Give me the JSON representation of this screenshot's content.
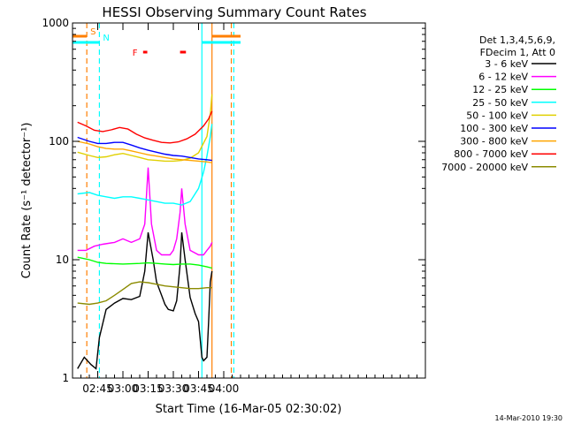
{
  "chart_data": {
    "type": "line",
    "title": "HESSI Observing Summary Count Rates",
    "xlabel": "Start Time (16-Mar-05 02:30:02)",
    "ylabel": "Count Rate (s⁻¹ detector⁻¹)",
    "yscale": "log",
    "ylim": [
      1,
      1000
    ],
    "xlim_minutes": [
      30,
      240
    ],
    "x_ticks": [
      {
        "minute": 45,
        "label": "02:45"
      },
      {
        "minute": 60,
        "label": "03:00"
      },
      {
        "minute": 75,
        "label": "03:15"
      },
      {
        "minute": 90,
        "label": "03:30"
      },
      {
        "minute": 105,
        "label": "03:45"
      },
      {
        "minute": 120,
        "label": "04:00"
      }
    ],
    "y_ticks": [
      {
        "value": 1,
        "label": "1"
      },
      {
        "value": 10,
        "label": "10"
      },
      {
        "value": 100,
        "label": "100"
      },
      {
        "value": 1000,
        "label": "1000"
      }
    ],
    "legend_header": [
      "Det 1,3,4,5,6,9,",
      "FDecim 1, Att 0"
    ],
    "legend_position": "right",
    "series": [
      {
        "name": "3 - 6 keV",
        "color": "#000000",
        "x": [
          33,
          37,
          41,
          44,
          46,
          50,
          55,
          60,
          65,
          70,
          73,
          75,
          78,
          80,
          83,
          85,
          87,
          90,
          92,
          94,
          95,
          97,
          100,
          103,
          105,
          107,
          108,
          110,
          111,
          112,
          113
        ],
        "y": [
          1.2,
          1.5,
          1.3,
          1.2,
          2.2,
          3.8,
          4.3,
          4.7,
          4.6,
          4.9,
          8,
          17,
          10,
          6.5,
          5,
          4.2,
          3.8,
          3.7,
          4.5,
          9,
          17,
          10,
          4.8,
          3.5,
          3,
          1.5,
          1.4,
          1.5,
          3,
          6.5,
          8
        ]
      },
      {
        "name": "6 - 12 keV",
        "color": "#ff00ff",
        "x": [
          33,
          38,
          43,
          48,
          55,
          60,
          65,
          70,
          73,
          75,
          77,
          80,
          83,
          85,
          88,
          90,
          92,
          94,
          95,
          97,
          100,
          105,
          108,
          110,
          112,
          113
        ],
        "y": [
          12,
          12,
          13,
          13.5,
          14,
          15,
          14,
          15,
          20,
          60,
          20,
          12,
          11,
          11,
          11,
          12,
          15,
          25,
          40,
          20,
          12,
          11,
          11,
          12,
          13,
          14
        ]
      },
      {
        "name": "12 - 25 keV",
        "color": "#00ff00",
        "x": [
          33,
          40,
          45,
          50,
          60,
          70,
          75,
          80,
          85,
          90,
          95,
          100,
          105,
          110,
          113
        ],
        "y": [
          10.5,
          10,
          9.5,
          9.3,
          9.2,
          9.3,
          9.4,
          9.3,
          9.2,
          9.1,
          9.2,
          9.2,
          9,
          8.7,
          8.5
        ]
      },
      {
        "name": "25 - 50 keV",
        "color": "#00ffff",
        "x": [
          33,
          40,
          45,
          50,
          55,
          60,
          65,
          70,
          75,
          80,
          85,
          90,
          95,
          100,
          105,
          108,
          110,
          112,
          113
        ],
        "y": [
          36,
          37,
          35,
          34,
          33,
          34,
          34,
          33,
          32,
          31,
          30,
          30,
          29,
          31,
          40,
          55,
          75,
          110,
          140
        ]
      },
      {
        "name": "50 - 100 keV",
        "color": "#e0d000",
        "x": [
          33,
          40,
          45,
          50,
          55,
          60,
          65,
          70,
          75,
          80,
          85,
          90,
          95,
          100,
          105,
          110,
          112,
          113
        ],
        "y": [
          81,
          76,
          73,
          74,
          77,
          79,
          76,
          73,
          70,
          69,
          68,
          68,
          69,
          72,
          80,
          110,
          170,
          250
        ]
      },
      {
        "name": "100 - 300 keV",
        "color": "#0000ff",
        "x": [
          33,
          40,
          45,
          50,
          55,
          60,
          65,
          70,
          75,
          80,
          85,
          90,
          95,
          100,
          105,
          110,
          113
        ],
        "y": [
          108,
          100,
          96,
          96,
          98,
          98,
          93,
          88,
          84,
          81,
          78,
          76,
          75,
          73,
          71,
          70,
          69
        ]
      },
      {
        "name": "300 - 800 keV",
        "color": "#ffa500",
        "x": [
          33,
          40,
          45,
          50,
          55,
          60,
          65,
          70,
          75,
          80,
          85,
          90,
          95,
          100,
          105,
          110,
          113
        ],
        "y": [
          100,
          95,
          90,
          87,
          86,
          86,
          83,
          80,
          77,
          75,
          73,
          71,
          70,
          69,
          68,
          67,
          66
        ]
      },
      {
        "name": "800 - 7000 keV",
        "color": "#ff0000",
        "x": [
          33,
          38,
          43,
          48,
          53,
          58,
          63,
          68,
          73,
          78,
          83,
          88,
          93,
          98,
          103,
          108,
          111,
          113
        ],
        "y": [
          145,
          135,
          124,
          121,
          125,
          131,
          127,
          115,
          107,
          102,
          98,
          97,
          99,
          105,
          115,
          135,
          155,
          180
        ]
      },
      {
        "name": "7000 - 20000 keV",
        "color": "#8b8b00",
        "x": [
          33,
          40,
          45,
          50,
          55,
          60,
          65,
          70,
          75,
          80,
          85,
          90,
          95,
          100,
          105,
          110,
          113
        ],
        "y": [
          4.3,
          4.2,
          4.3,
          4.5,
          5,
          5.6,
          6.3,
          6.5,
          6.4,
          6.2,
          6,
          5.9,
          5.8,
          5.7,
          5.7,
          5.8,
          5.8
        ]
      }
    ],
    "markers": [
      {
        "label": "S",
        "color": "#ff7f00",
        "x_start": 30,
        "x_end": 38.5
      },
      {
        "label": "N",
        "color": "#00ffff",
        "x_start": 30,
        "x_end": 46
      },
      {
        "label": "F",
        "color": "#ff0000",
        "x_start": 72,
        "x_end": 74.5
      },
      {
        "label": "",
        "color": "#ff0000",
        "x_start": 94,
        "x_end": 97.5
      },
      {
        "label": "",
        "color": "#00ffff",
        "x_start": 107,
        "x_end": 130
      },
      {
        "label": "",
        "color": "#ff7f00",
        "x_start": 113,
        "x_end": 130
      }
    ],
    "vlines": [
      {
        "x": 38.5,
        "color": "#ff7f00",
        "style": "dashed"
      },
      {
        "x": 46,
        "color": "#00ffff",
        "style": "dashed"
      },
      {
        "x": 107,
        "color": "#00ffff",
        "style": "solid"
      },
      {
        "x": 113,
        "color": "#ff7f00",
        "style": "solid"
      },
      {
        "x": 126,
        "color": "#00ffff",
        "style": "dashed"
      },
      {
        "x": 124.5,
        "color": "#ff7f00",
        "style": "dashed"
      }
    ],
    "footer_timestamp": "14-Mar-2010 19:30"
  }
}
